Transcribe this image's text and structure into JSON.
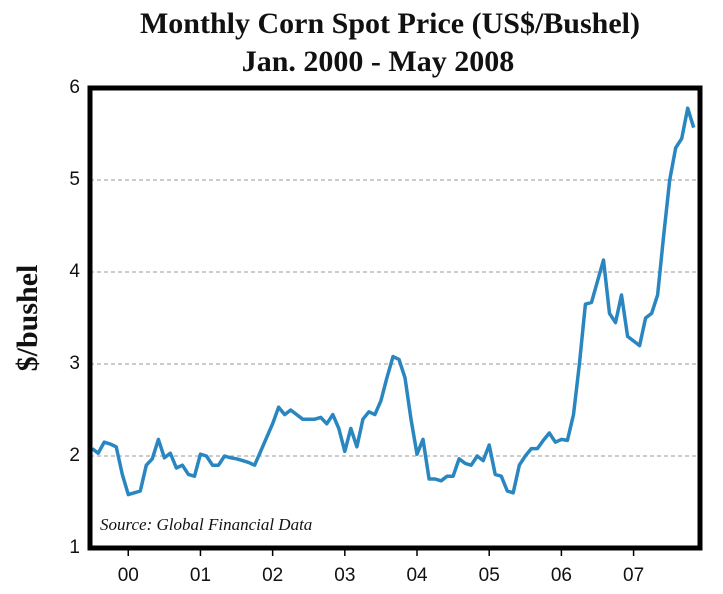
{
  "chart_data": {
    "type": "line",
    "title": "Monthly Corn Spot Price (US$/Bushel)",
    "subtitle": "Jan. 2000 - May 2008",
    "y_label": "$/bushel",
    "annotation": "Source: Global Financial Data",
    "x": [
      2000,
      2000.083,
      2000.167,
      2000.25,
      2000.333,
      2000.417,
      2000.5,
      2000.583,
      2000.667,
      2000.75,
      2000.833,
      2000.917,
      2001,
      2001.083,
      2001.167,
      2001.25,
      2001.333,
      2001.417,
      2001.5,
      2001.583,
      2001.667,
      2001.75,
      2001.833,
      2001.917,
      2002,
      2002.083,
      2002.167,
      2002.25,
      2002.333,
      2002.417,
      2002.5,
      2002.583,
      2002.667,
      2002.75,
      2002.833,
      2002.917,
      2003,
      2003.083,
      2003.167,
      2003.25,
      2003.333,
      2003.417,
      2003.5,
      2003.583,
      2003.667,
      2003.75,
      2003.833,
      2003.917,
      2004,
      2004.083,
      2004.167,
      2004.25,
      2004.333,
      2004.417,
      2004.5,
      2004.583,
      2004.667,
      2004.75,
      2004.833,
      2004.917,
      2005,
      2005.083,
      2005.167,
      2005.25,
      2005.333,
      2005.417,
      2005.5,
      2005.583,
      2005.667,
      2005.75,
      2005.833,
      2005.917,
      2006,
      2006.083,
      2006.167,
      2006.25,
      2006.333,
      2006.417,
      2006.5,
      2006.583,
      2006.667,
      2006.75,
      2006.833,
      2006.917,
      2007,
      2007.083,
      2007.167,
      2007.25,
      2007.333,
      2007.417,
      2007.5,
      2007.583,
      2007.667,
      2007.75,
      2007.833,
      2007.917,
      2008,
      2008.083,
      2008.167,
      2008.25,
      2008.333
    ],
    "series": [
      {
        "name": "Corn spot price",
        "color": "#2a86c0",
        "values": [
          2.08,
          2.03,
          2.15,
          2.13,
          2.1,
          1.8,
          1.58,
          1.6,
          1.62,
          1.9,
          1.97,
          2.18,
          1.98,
          2.03,
          1.87,
          1.9,
          1.8,
          1.78,
          2.02,
          2.0,
          1.9,
          1.9,
          2.0,
          1.98,
          1.97,
          1.95,
          1.93,
          1.9,
          2.05,
          2.2,
          2.35,
          2.53,
          2.45,
          2.5,
          2.45,
          2.4,
          2.4,
          2.4,
          2.42,
          2.35,
          2.45,
          2.3,
          2.05,
          2.3,
          2.1,
          2.4,
          2.48,
          2.45,
          2.6,
          2.85,
          3.08,
          3.05,
          2.85,
          2.4,
          2.02,
          2.18,
          1.75,
          1.75,
          1.73,
          1.78,
          1.78,
          1.97,
          1.92,
          1.9,
          2.0,
          1.95,
          2.12,
          1.8,
          1.78,
          1.62,
          1.6,
          1.9,
          2.0,
          2.08,
          2.08,
          2.17,
          2.25,
          2.15,
          2.18,
          2.17,
          2.45,
          3.0,
          3.65,
          3.67,
          3.9,
          4.13,
          3.55,
          3.45,
          3.75,
          3.3,
          3.25,
          3.2,
          3.5,
          3.55,
          3.75,
          4.4,
          5.0,
          5.35,
          5.45,
          5.78,
          5.57
        ]
      }
    ],
    "xlim": [
      1999.97,
      2008.42
    ],
    "xticks": [
      {
        "value": 2000.5,
        "label": "00"
      },
      {
        "value": 2001.5,
        "label": "01"
      },
      {
        "value": 2002.5,
        "label": "02"
      },
      {
        "value": 2003.5,
        "label": "03"
      },
      {
        "value": 2004.5,
        "label": "04"
      },
      {
        "value": 2005.5,
        "label": "05"
      },
      {
        "value": 2006.5,
        "label": "06"
      },
      {
        "value": 2007.5,
        "label": "07"
      }
    ],
    "ylim": [
      1,
      6
    ],
    "yticks": [
      1,
      2,
      3,
      4,
      5,
      6
    ],
    "grid": true
  }
}
